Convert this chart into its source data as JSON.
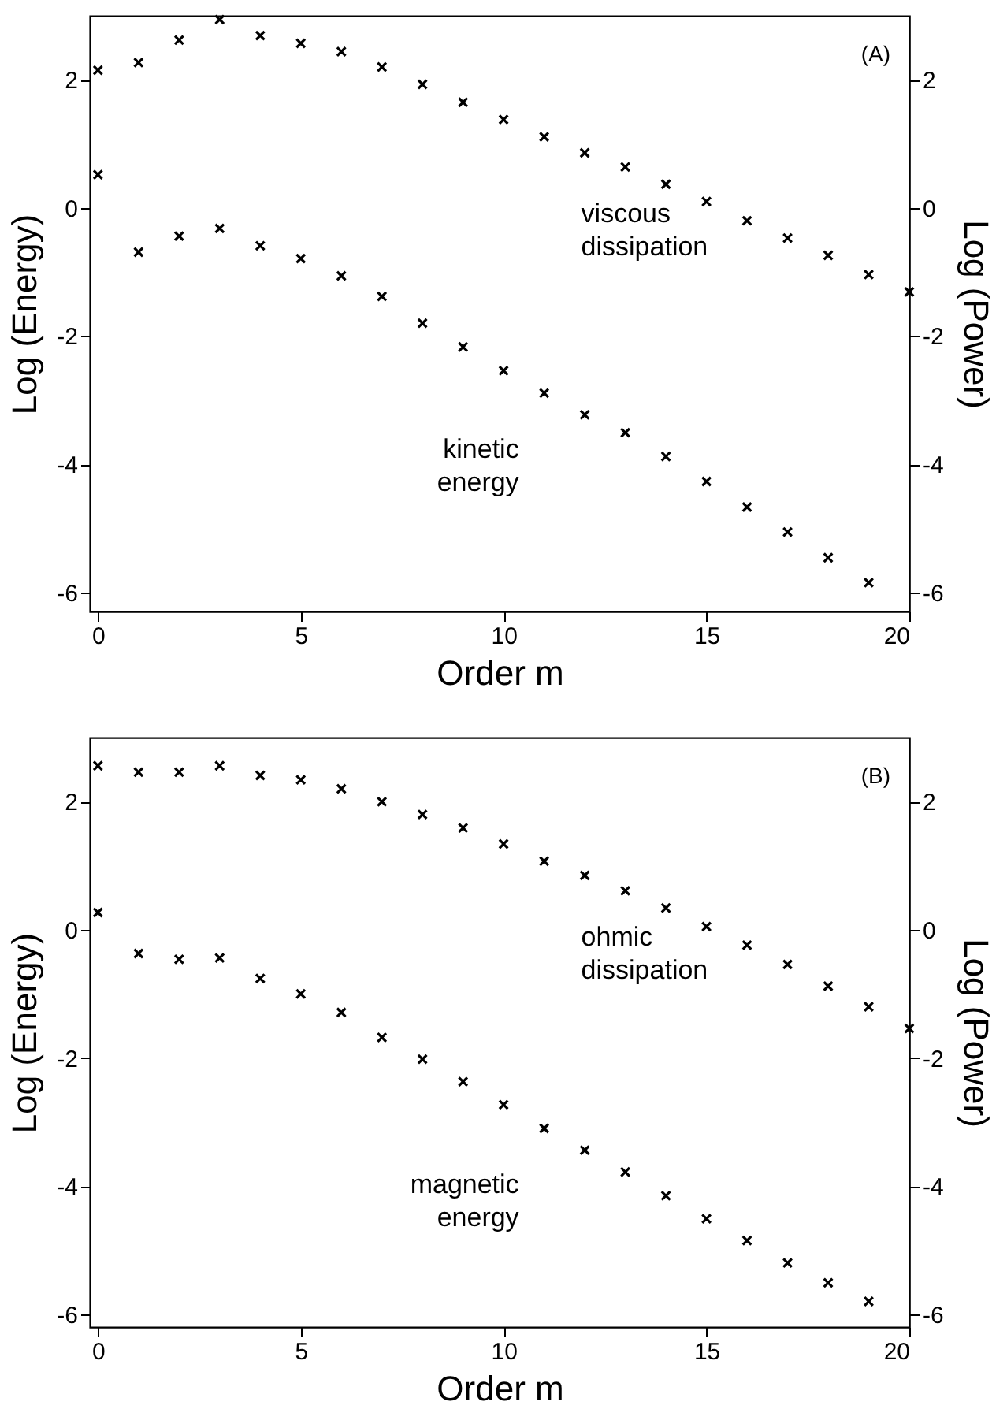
{
  "chart_data": [
    {
      "type": "scatter",
      "xlabel": "Order  m",
      "ylabel": "Log (Energy)",
      "y2label": "Log (Power)",
      "xlim": [
        -0.2,
        20
      ],
      "xticks": [
        0,
        5,
        10,
        15,
        20
      ],
      "ylim": [
        -6.3,
        3
      ],
      "yticks": [
        -6,
        -4,
        -2,
        0,
        2
      ],
      "y2lim": [
        -6.3,
        3
      ],
      "y2ticks": [
        -6,
        -4,
        -2,
        0,
        2
      ],
      "marker": "cross",
      "grid": false,
      "annotations": [
        "(A)"
      ],
      "series": [
        {
          "name": "kinetic energy",
          "color": "#000000",
          "x": [
            0,
            1,
            2,
            3,
            4,
            5,
            6,
            7,
            8,
            9,
            10,
            11,
            12,
            13,
            14,
            15,
            16,
            17,
            18,
            19
          ],
          "values": [
            0.52,
            -0.69,
            -0.44,
            -0.32,
            -0.59,
            -0.79,
            -1.06,
            -1.38,
            -1.8,
            -2.17,
            -2.54,
            -2.89,
            -3.23,
            -3.51,
            -3.88,
            -4.27,
            -4.67,
            -5.06,
            -5.46,
            -5.85
          ]
        },
        {
          "name": "viscous dissipation",
          "color": "#000000",
          "axis": "y2",
          "x": [
            0,
            1,
            2,
            3,
            4,
            5,
            6,
            7,
            8,
            9,
            10,
            11,
            12,
            13,
            14,
            15,
            16,
            17,
            18,
            19,
            20
          ],
          "values": [
            2.15,
            2.27,
            2.62,
            2.94,
            2.69,
            2.57,
            2.44,
            2.2,
            1.93,
            1.65,
            1.38,
            1.11,
            0.86,
            0.64,
            0.37,
            0.1,
            -0.2,
            -0.47,
            -0.74,
            -1.04,
            -1.31
          ]
        }
      ]
    },
    {
      "type": "scatter",
      "xlabel": "Order  m",
      "ylabel": "Log (Energy)",
      "y2label": "Log (Power)",
      "xlim": [
        -0.2,
        20
      ],
      "xticks": [
        0,
        5,
        10,
        15,
        20
      ],
      "ylim": [
        -6.2,
        3
      ],
      "yticks": [
        -6,
        -4,
        -2,
        0,
        2
      ],
      "y2lim": [
        -6.2,
        3
      ],
      "y2ticks": [
        -6,
        -4,
        -2,
        0,
        2
      ],
      "marker": "cross",
      "grid": false,
      "annotations": [
        "(B)"
      ],
      "series": [
        {
          "name": "magnetic energy",
          "color": "#000000",
          "x": [
            0,
            1,
            2,
            3,
            4,
            5,
            6,
            7,
            8,
            9,
            10,
            11,
            12,
            13,
            14,
            15,
            16,
            17,
            18,
            19
          ],
          "values": [
            0.27,
            -0.37,
            -0.46,
            -0.44,
            -0.76,
            -1.0,
            -1.29,
            -1.68,
            -2.02,
            -2.37,
            -2.73,
            -3.1,
            -3.44,
            -3.78,
            -4.15,
            -4.51,
            -4.85,
            -5.2,
            -5.51,
            -5.8
          ]
        },
        {
          "name": "ohmic dissipation",
          "color": "#000000",
          "axis": "y2",
          "x": [
            0,
            1,
            2,
            3,
            4,
            5,
            6,
            7,
            8,
            9,
            10,
            11,
            12,
            13,
            14,
            15,
            16,
            17,
            18,
            19,
            20
          ],
          "values": [
            2.56,
            2.46,
            2.46,
            2.56,
            2.41,
            2.34,
            2.2,
            2.0,
            1.8,
            1.59,
            1.34,
            1.07,
            0.85,
            0.61,
            0.34,
            0.05,
            -0.24,
            -0.54,
            -0.88,
            -1.2,
            -1.54
          ]
        }
      ]
    }
  ]
}
